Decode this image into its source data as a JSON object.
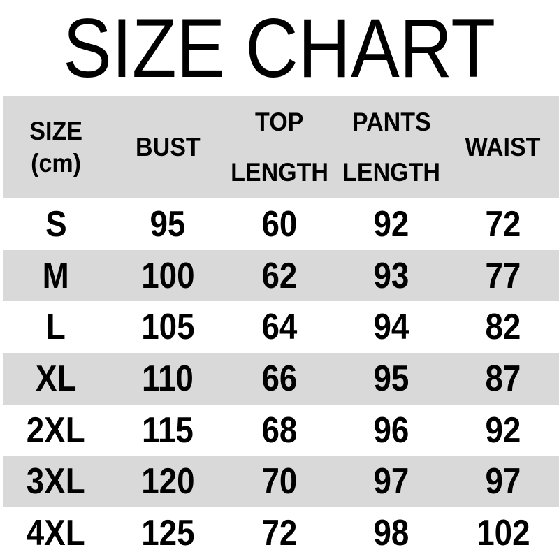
{
  "title": "SIZE CHART",
  "colors": {
    "background": "#ffffff",
    "header_bg": "#d9d9d9",
    "alt_row_bg": "#d9d9d9",
    "text": "#000000"
  },
  "table": {
    "header": {
      "size_line1": "SIZE",
      "size_line2": "(cm)",
      "bust": "BUST",
      "top_line1": "TOP",
      "top_line2": "LENGTH",
      "pants_line1": "PANTS",
      "pants_line2": "LENGTH",
      "waist": "WAIST"
    },
    "rows": [
      {
        "size": "S",
        "bust": "95",
        "top_length": "60",
        "pants_length": "92",
        "waist": "72"
      },
      {
        "size": "M",
        "bust": "100",
        "top_length": "62",
        "pants_length": "93",
        "waist": "77"
      },
      {
        "size": "L",
        "bust": "105",
        "top_length": "64",
        "pants_length": "94",
        "waist": "82"
      },
      {
        "size": "XL",
        "bust": "110",
        "top_length": "66",
        "pants_length": "95",
        "waist": "87"
      },
      {
        "size": "2XL",
        "bust": "115",
        "top_length": "68",
        "pants_length": "96",
        "waist": "92"
      },
      {
        "size": "3XL",
        "bust": "120",
        "top_length": "70",
        "pants_length": "97",
        "waist": "97"
      },
      {
        "size": "4XL",
        "bust": "125",
        "top_length": "72",
        "pants_length": "98",
        "waist": "102"
      }
    ]
  },
  "chart_data": {
    "type": "table",
    "title": "SIZE CHART",
    "unit": "cm",
    "columns": [
      "SIZE (cm)",
      "BUST",
      "TOP LENGTH",
      "PANTS LENGTH",
      "WAIST"
    ],
    "rows": [
      [
        "S",
        95,
        60,
        92,
        72
      ],
      [
        "M",
        100,
        62,
        93,
        77
      ],
      [
        "L",
        105,
        64,
        94,
        82
      ],
      [
        "XL",
        110,
        66,
        95,
        87
      ],
      [
        "2XL",
        115,
        68,
        96,
        92
      ],
      [
        "3XL",
        120,
        70,
        97,
        97
      ],
      [
        "4XL",
        125,
        72,
        98,
        102
      ]
    ]
  }
}
